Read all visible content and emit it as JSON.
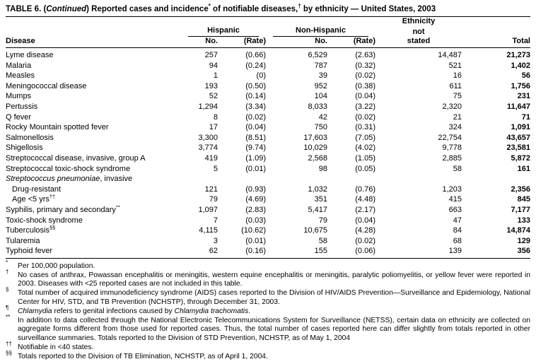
{
  "title_parts": [
    {
      "t": "TABLE 6. ("
    },
    {
      "t": "Continued",
      "i": true
    },
    {
      "t": ") Reported cases and incidence"
    },
    {
      "t": "*",
      "s": true
    },
    {
      "t": " of notifiable diseases,"
    },
    {
      "t": "†",
      "s": true
    },
    {
      "t": " by ethnicity — United States, 2003"
    }
  ],
  "header": {
    "disease": "Disease",
    "hispanic": "Hispanic",
    "non_hispanic": "Non-Hispanic",
    "no_1": "No.",
    "rate_1": "(Rate)",
    "no_2": "No.",
    "rate_2": "(Rate)",
    "ethnicity_line1": "Ethnicity",
    "ethnicity_line2": "not",
    "ethnicity_line3": "stated",
    "total": "Total"
  },
  "rows": [
    {
      "disease": [
        {
          "t": "Lyme disease"
        }
      ],
      "cells": [
        "257",
        "(0.66)",
        "6,529",
        "(2.63)",
        "14,487",
        "21,273"
      ]
    },
    {
      "disease": [
        {
          "t": "Malaria"
        }
      ],
      "cells": [
        "94",
        "(0.24)",
        "787",
        "(0.32)",
        "521",
        "1,402"
      ]
    },
    {
      "disease": [
        {
          "t": "Measles"
        }
      ],
      "cells": [
        "1",
        "(0)",
        "39",
        "(0.02)",
        "16",
        "56"
      ]
    },
    {
      "disease": [
        {
          "t": "Meningococcal disease"
        }
      ],
      "cells": [
        "193",
        "(0.50)",
        "952",
        "(0.38)",
        "611",
        "1,756"
      ]
    },
    {
      "disease": [
        {
          "t": "Mumps"
        }
      ],
      "cells": [
        "52",
        "(0.14)",
        "104",
        "(0.04)",
        "75",
        "231"
      ]
    },
    {
      "disease": [
        {
          "t": "Pertussis"
        }
      ],
      "cells": [
        "1,294",
        "(3.34)",
        "8,033",
        "(3.22)",
        "2,320",
        "11,647"
      ]
    },
    {
      "disease": [
        {
          "t": "Q fever"
        }
      ],
      "cells": [
        "8",
        "(0.02)",
        "42",
        "(0.02)",
        "21",
        "71"
      ]
    },
    {
      "disease": [
        {
          "t": "Rocky Mountain spotted fever"
        }
      ],
      "cells": [
        "17",
        "(0.04)",
        "750",
        "(0.31)",
        "324",
        "1,091"
      ]
    },
    {
      "disease": [
        {
          "t": "Salmonellosis"
        }
      ],
      "cells": [
        "3,300",
        "(8.51)",
        "17,603",
        "(7.05)",
        "22,754",
        "43,657"
      ]
    },
    {
      "disease": [
        {
          "t": "Shigellosis"
        }
      ],
      "cells": [
        "3,774",
        "(9.74)",
        "10,029",
        "(4.02)",
        "9,778",
        "23,581"
      ]
    },
    {
      "disease": [
        {
          "t": "Streptococcal disease, invasive, group A"
        }
      ],
      "cells": [
        "419",
        "(1.09)",
        "2,568",
        "(1.05)",
        "2,885",
        "5,872"
      ]
    },
    {
      "disease": [
        {
          "t": "Streptococcal toxic-shock syndrome"
        }
      ],
      "cells": [
        "5",
        "(0.01)",
        "98",
        "(0.05)",
        "58",
        "161"
      ]
    },
    {
      "disease": [
        {
          "t": "Streptococcus pneumoniae",
          "i": true
        },
        {
          "t": ", invasive"
        }
      ],
      "cells": [
        "",
        "",
        "",
        "",
        "",
        ""
      ]
    },
    {
      "disease": [
        {
          "t": "Drug-resistant"
        }
      ],
      "indent": true,
      "cells": [
        "121",
        "(0.93)",
        "1,032",
        "(0.76)",
        "1,203",
        "2,356"
      ]
    },
    {
      "disease": [
        {
          "t": "Age <5 yrs"
        },
        {
          "t": "††",
          "s": true
        }
      ],
      "indent": true,
      "cells": [
        "79",
        "(4.69)",
        "351",
        "(4.48)",
        "415",
        "845"
      ]
    },
    {
      "disease": [
        {
          "t": "Syphilis, primary and secondary"
        },
        {
          "t": "**",
          "s": true
        }
      ],
      "cells": [
        "1,097",
        "(2.83)",
        "5,417",
        "(2.17)",
        "663",
        "7,177"
      ]
    },
    {
      "disease": [
        {
          "t": "Toxic-shock syndrome"
        }
      ],
      "cells": [
        "7",
        "(0.03)",
        "79",
        "(0.04)",
        "47",
        "133"
      ]
    },
    {
      "disease": [
        {
          "t": "Tuberculosis"
        },
        {
          "t": "§§",
          "s": true
        }
      ],
      "cells": [
        "4,115",
        "(10.62)",
        "10,675",
        "(4.28)",
        "84",
        "14,874"
      ]
    },
    {
      "disease": [
        {
          "t": "Tularemia"
        }
      ],
      "cells": [
        "3",
        "(0.01)",
        "58",
        "(0.02)",
        "68",
        "129"
      ]
    },
    {
      "disease": [
        {
          "t": "Typhoid fever"
        }
      ],
      "cells": [
        "62",
        "(0.16)",
        "155",
        "(0.06)",
        "139",
        "356"
      ]
    }
  ],
  "footnotes": [
    {
      "sym": "*",
      "parts": [
        {
          "t": "Per 100,000 population."
        }
      ]
    },
    {
      "sym": "†",
      "parts": [
        {
          "t": "No cases of anthrax, Powassan encephalitis or meningitis, western equine encephalitis or meningitis, paralytic poliomyelitis, or yellow fever were reported in 2003. Diseases with <25 reported cases are not included in this table."
        }
      ]
    },
    {
      "sym": "§",
      "parts": [
        {
          "t": "Total number of acquired immunodeficiency syndrome (AIDS) cases reported to the Division of HIV/AIDS Prevention—Surveillance and Epidemiology, National Center for HIV, STD, and TB Prevention (NCHSTP), through December 31, 2003."
        }
      ]
    },
    {
      "sym": "¶",
      "parts": [
        {
          "t": "Chlamydia",
          "i": true
        },
        {
          "t": " refers to genital infections caused by "
        },
        {
          "t": "Chlamydia trachomatis",
          "i": true
        },
        {
          "t": "."
        }
      ]
    },
    {
      "sym": "**",
      "parts": [
        {
          "t": "In addition to data collected through the National Electronic Telecommunications System for Surveillance (NETSS), certain data on ethnicity are collected on aggregate forms different from those used for reported cases. Thus, the total number of cases reported here can differ slightly from totals reported in other surveillance summaries. Totals reported to the Division of STD Prevention, NCHSTP, as of May 1, 2004"
        }
      ]
    },
    {
      "sym": "††",
      "parts": [
        {
          "t": "Notifiable in <40 states."
        }
      ]
    },
    {
      "sym": "§§",
      "parts": [
        {
          "t": "Totals reported to the Division of TB Elimination, NCHSTP, as of April 1, 2004."
        }
      ]
    }
  ]
}
